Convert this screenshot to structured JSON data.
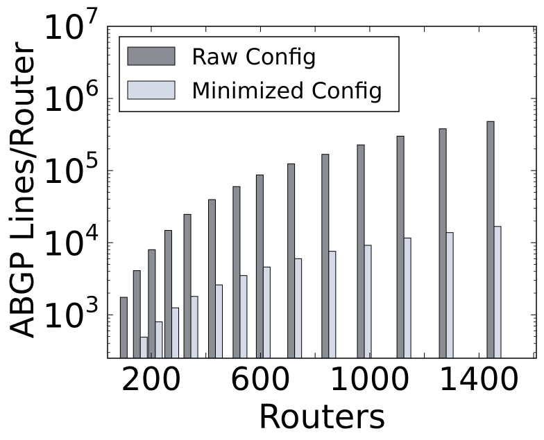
{
  "chart_data": {
    "type": "bar",
    "xlabel": "Routers",
    "ylabel": "ABGP Lines/Router",
    "yscale": "log",
    "ylim": [
      250,
      10000000
    ],
    "xlim": [
      40,
      1610
    ],
    "grid": false,
    "legend_position": "top-left",
    "x_ticks": [
      "200",
      "600",
      "1000",
      "1400"
    ],
    "y_ticks": [
      {
        "base": "10",
        "exp": "3"
      },
      {
        "base": "10",
        "exp": "4"
      },
      {
        "base": "10",
        "exp": "5"
      },
      {
        "base": "10",
        "exp": "6"
      },
      {
        "base": "10",
        "exp": "7"
      }
    ],
    "x": [
      112,
      160,
      215,
      275,
      345,
      435,
      525,
      610,
      725,
      850,
      980,
      1125,
      1280,
      1455
    ],
    "series": [
      {
        "name": "Raw Config",
        "color": "#8a8d94",
        "values": [
          1750,
          4100,
          8000,
          14800,
          24700,
          39600,
          60000,
          87000,
          124000,
          168000,
          227000,
          300000,
          380000,
          480000
        ]
      },
      {
        "name": "Minimized Config",
        "color": "#d4dbe6",
        "values": [
          null,
          490,
          800,
          1250,
          1800,
          2600,
          3500,
          4600,
          6000,
          7600,
          9200,
          11600,
          13800,
          16800
        ]
      }
    ]
  }
}
